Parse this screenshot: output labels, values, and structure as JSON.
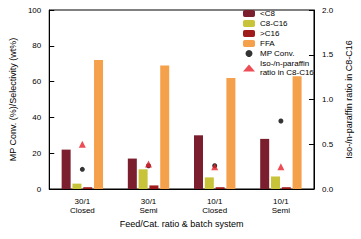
{
  "chart_data": {
    "type": "bar",
    "xlabel": "Feed/Cat. ratio & batch system",
    "ylabel": "MP Conv. (%)/Selectivity (wt%)",
    "y2label": "Iso-/n-paraffin ratio in C8-C16",
    "categories": [
      "30/1\nClosed",
      "30/1\nSemi",
      "10/1\nClosed",
      "10/1\nSemi"
    ],
    "ylim": [
      0,
      100
    ],
    "yticks": [
      0,
      20,
      40,
      60,
      80,
      100
    ],
    "y2lim": [
      0,
      2
    ],
    "y2ticks": [
      {
        "value": 0,
        "label": "0.0"
      },
      {
        "value": 0.5,
        "label": "0.5"
      },
      {
        "value": 1,
        "label": "1.0"
      },
      {
        "value": 1.5,
        "label": "1.5"
      },
      {
        "value": 2,
        "label": "2.0"
      }
    ],
    "legend": "upper right",
    "series": [
      {
        "name": "<C8",
        "type": "bar",
        "color": "#7b1f2f",
        "values": [
          22,
          17,
          30,
          28
        ]
      },
      {
        "name": "C8-C16",
        "type": "bar",
        "color": "#c8c43a",
        "values": [
          3,
          11,
          6.5,
          7
        ]
      },
      {
        "name": ">C16",
        "type": "bar",
        "color": "#a01c1c",
        "values": [
          1,
          2,
          1,
          1
        ]
      },
      {
        "name": "FFA",
        "type": "bar",
        "color": "#f5a04a",
        "values": [
          72,
          69,
          62,
          63
        ]
      },
      {
        "name": "MP Conv.",
        "type": "scatter",
        "marker": "circle",
        "color": "#000000",
        "values": [
          11,
          13,
          13,
          38
        ]
      },
      {
        "name": "Iso-/n-paraffin\nratio in C8-C16",
        "type": "scatter",
        "marker": "triangle",
        "color": "#e8202a",
        "axis": "y2",
        "values": [
          0.5,
          0.28,
          0.25,
          0.25
        ]
      }
    ]
  }
}
